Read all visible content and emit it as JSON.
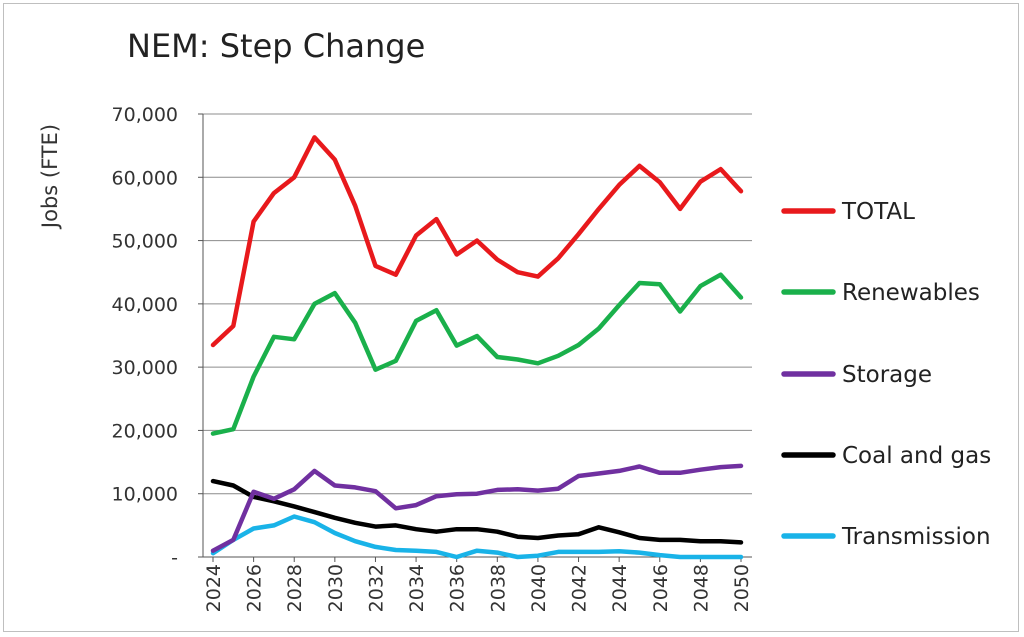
{
  "chart_data": {
    "type": "line",
    "title": "NEM: Step Change",
    "ylabel": "Jobs (FTE)",
    "xlabel": "",
    "ylim": [
      0,
      70000
    ],
    "yticks": [
      0,
      10000,
      20000,
      30000,
      40000,
      50000,
      60000,
      70000
    ],
    "ytick_labels": [
      "-",
      "10,000",
      "20,000",
      "30,000",
      "40,000",
      "50,000",
      "60,000",
      "70,000"
    ],
    "xlim": [
      2024,
      2050
    ],
    "xticks": [
      2024,
      2026,
      2028,
      2030,
      2032,
      2034,
      2036,
      2038,
      2040,
      2042,
      2044,
      2046,
      2048,
      2050
    ],
    "xtick_labels": [
      "2024",
      "2026",
      "2028",
      "2030",
      "2032",
      "2034",
      "2036",
      "2038",
      "2040",
      "2042",
      "2044",
      "2046",
      "2048",
      "2050"
    ],
    "grid": true,
    "legend_position": "right",
    "x": [
      2024,
      2025,
      2026,
      2027,
      2028,
      2029,
      2030,
      2031,
      2032,
      2033,
      2034,
      2035,
      2036,
      2037,
      2038,
      2039,
      2040,
      2041,
      2042,
      2043,
      2044,
      2045,
      2046,
      2047,
      2048,
      2049,
      2050
    ],
    "series": [
      {
        "name": "TOTAL",
        "color": "#e8191c",
        "values": [
          33500,
          36500,
          53000,
          57500,
          60000,
          66300,
          62800,
          55500,
          46000,
          44600,
          50800,
          53400,
          47800,
          50000,
          47000,
          45000,
          44300,
          47200,
          51000,
          55000,
          58800,
          61800,
          59200,
          55000,
          59300,
          61300,
          57800
        ]
      },
      {
        "name": "Renewables",
        "color": "#1ab04b",
        "values": [
          19500,
          20200,
          28500,
          34800,
          34400,
          40000,
          41700,
          37000,
          29600,
          31000,
          37300,
          39000,
          33400,
          34900,
          31600,
          31200,
          30600,
          31800,
          33500,
          36100,
          39800,
          43300,
          43100,
          38800,
          42800,
          44600,
          41000
        ]
      },
      {
        "name": "Storage",
        "color": "#7030a0",
        "values": [
          1000,
          2700,
          10300,
          9200,
          10700,
          13600,
          11300,
          11000,
          10400,
          7700,
          8200,
          9600,
          9900,
          10000,
          10600,
          10700,
          10500,
          10800,
          12800,
          13200,
          13600,
          14300,
          13300,
          13300,
          13800,
          14200,
          14400
        ]
      },
      {
        "name": "Coal and gas",
        "color": "#000000",
        "values": [
          12000,
          11300,
          9500,
          8800,
          8000,
          7100,
          6200,
          5400,
          4800,
          5000,
          4400,
          4000,
          4400,
          4400,
          4000,
          3200,
          3000,
          3400,
          3600,
          4700,
          3900,
          3000,
          2700,
          2700,
          2500,
          2500,
          2300
        ]
      },
      {
        "name": "Transmission",
        "color": "#19b3e8",
        "values": [
          600,
          2700,
          4500,
          5000,
          6400,
          5500,
          3800,
          2500,
          1600,
          1100,
          1000,
          800,
          0,
          1000,
          700,
          0,
          200,
          800,
          800,
          800,
          900,
          700,
          300,
          0,
          0,
          0,
          0
        ]
      }
    ]
  }
}
